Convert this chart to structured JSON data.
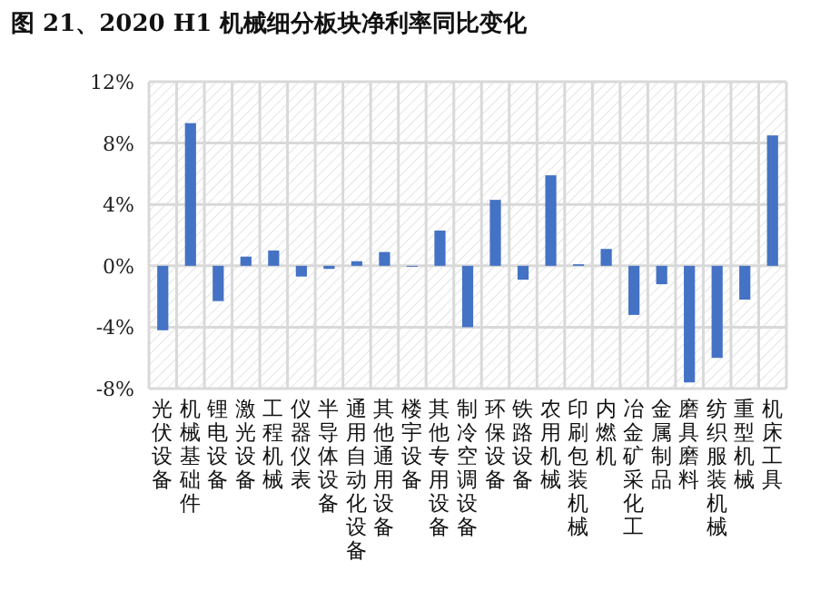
{
  "chart_data": {
    "type": "bar",
    "title": "图 21、2020 H1 机械细分板块净利率同比变化",
    "categories": [
      "光伏设备",
      "机械基础件",
      "锂电设备",
      "激光设备",
      "工程机械",
      "仪器仪表",
      "半导体设备",
      "通用自动化设备",
      "其他通用设备",
      "楼宇设备",
      "其他专用设备",
      "制冷空调设备",
      "环保设备",
      "铁路设备",
      "农用机械",
      "印刷包装机械",
      "内燃机",
      "冶金矿采化工",
      "金属制品",
      "磨具磨料",
      "纺织服装机械",
      "重型机械",
      "机床工具"
    ],
    "values": [
      -4.2,
      9.3,
      -2.3,
      0.6,
      1.0,
      -0.7,
      -0.2,
      0.3,
      0.9,
      0,
      2.3,
      -4.0,
      4.3,
      -0.9,
      5.9,
      0.1,
      1.1,
      -3.2,
      -1.2,
      -7.6,
      -6.0,
      -2.2,
      8.5
    ],
    "color": "#4472c4",
    "ylim": [
      -8,
      12
    ],
    "yticks": [
      {
        "value": -8,
        "label": "-8%"
      },
      {
        "value": -4,
        "label": "-4%"
      },
      {
        "value": 0,
        "label": "0%"
      },
      {
        "value": 4,
        "label": "4%"
      },
      {
        "value": 8,
        "label": "8%"
      },
      {
        "value": 12,
        "label": "12%"
      }
    ],
    "grid": true
  }
}
